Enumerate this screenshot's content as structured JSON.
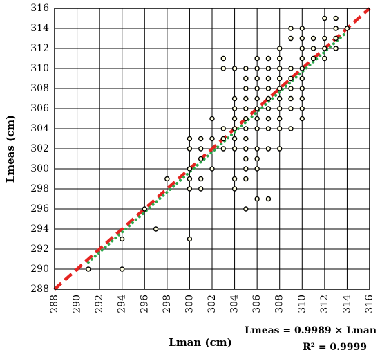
{
  "chart_data": {
    "type": "scatter",
    "xlabel": "Lman (cm)",
    "ylabel": "Lmeas (cm)",
    "xlim": [
      288,
      316
    ],
    "ylim": [
      288,
      316
    ],
    "xticks": [
      288,
      290,
      292,
      294,
      296,
      298,
      300,
      302,
      304,
      306,
      308,
      310,
      312,
      314,
      316
    ],
    "yticks": [
      288,
      290,
      292,
      294,
      296,
      298,
      300,
      302,
      304,
      306,
      308,
      310,
      312,
      314,
      316
    ],
    "grid": true,
    "annotations": [
      "Lmeas = 0.9989 × Lman",
      "R² = 0.9999"
    ],
    "points": [
      [
        291,
        290
      ],
      [
        294,
        290
      ],
      [
        294,
        293
      ],
      [
        300,
        293
      ],
      [
        297,
        294
      ],
      [
        296,
        296
      ],
      [
        305,
        296
      ],
      [
        306,
        297
      ],
      [
        307,
        297
      ],
      [
        300,
        298
      ],
      [
        301,
        298
      ],
      [
        304,
        298
      ],
      [
        298,
        299
      ],
      [
        300,
        299
      ],
      [
        301,
        299
      ],
      [
        304,
        299
      ],
      [
        305,
        299
      ],
      [
        300,
        300
      ],
      [
        302,
        300
      ],
      [
        305,
        300
      ],
      [
        306,
        300
      ],
      [
        301,
        301
      ],
      [
        305,
        301
      ],
      [
        306,
        301
      ],
      [
        300,
        302
      ],
      [
        301,
        302
      ],
      [
        303,
        302
      ],
      [
        304,
        302
      ],
      [
        305,
        302
      ],
      [
        306,
        302
      ],
      [
        307,
        302
      ],
      [
        308,
        302
      ],
      [
        300,
        303
      ],
      [
        301,
        303
      ],
      [
        302,
        303
      ],
      [
        303,
        303
      ],
      [
        304,
        303
      ],
      [
        305,
        303
      ],
      [
        303,
        304
      ],
      [
        304,
        304
      ],
      [
        305,
        304
      ],
      [
        306,
        304
      ],
      [
        307,
        304
      ],
      [
        308,
        304
      ],
      [
        309,
        304
      ],
      [
        302,
        305
      ],
      [
        304,
        305
      ],
      [
        305,
        305
      ],
      [
        306,
        305
      ],
      [
        307,
        305
      ],
      [
        308,
        305
      ],
      [
        310,
        305
      ],
      [
        304,
        306
      ],
      [
        305,
        306
      ],
      [
        306,
        306
      ],
      [
        307,
        306
      ],
      [
        308,
        306
      ],
      [
        309,
        306
      ],
      [
        310,
        306
      ],
      [
        304,
        307
      ],
      [
        305,
        307
      ],
      [
        306,
        307
      ],
      [
        307,
        307
      ],
      [
        308,
        307
      ],
      [
        309,
        307
      ],
      [
        310,
        307
      ],
      [
        305,
        308
      ],
      [
        306,
        308
      ],
      [
        307,
        308
      ],
      [
        308,
        308
      ],
      [
        309,
        308
      ],
      [
        310,
        308
      ],
      [
        305,
        309
      ],
      [
        306,
        309
      ],
      [
        307,
        309
      ],
      [
        308,
        309
      ],
      [
        309,
        309
      ],
      [
        310,
        309
      ],
      [
        303,
        310
      ],
      [
        304,
        310
      ],
      [
        305,
        310
      ],
      [
        306,
        310
      ],
      [
        307,
        310
      ],
      [
        308,
        310
      ],
      [
        309,
        310
      ],
      [
        310,
        310
      ],
      [
        303,
        311
      ],
      [
        306,
        311
      ],
      [
        307,
        311
      ],
      [
        308,
        311
      ],
      [
        310,
        311
      ],
      [
        311,
        311
      ],
      [
        312,
        311
      ],
      [
        308,
        312
      ],
      [
        310,
        312
      ],
      [
        311,
        312
      ],
      [
        312,
        312
      ],
      [
        313,
        312
      ],
      [
        309,
        313
      ],
      [
        310,
        313
      ],
      [
        311,
        313
      ],
      [
        312,
        313
      ],
      [
        313,
        313
      ],
      [
        309,
        314
      ],
      [
        310,
        314
      ],
      [
        313,
        314
      ],
      [
        314,
        314
      ],
      [
        312,
        315
      ],
      [
        313,
        315
      ]
    ],
    "series": [
      {
        "type": "line",
        "style": "dashed",
        "color": "#e52421",
        "x": [
          288,
          316
        ],
        "y": [
          288,
          316
        ]
      },
      {
        "type": "line",
        "style": "dotted",
        "color": "#2ca84c",
        "x": [
          291,
          314
        ],
        "y": [
          290.68,
          313.66
        ]
      }
    ],
    "marker_fill": "#ffffe0",
    "marker_stroke": "#000000"
  }
}
